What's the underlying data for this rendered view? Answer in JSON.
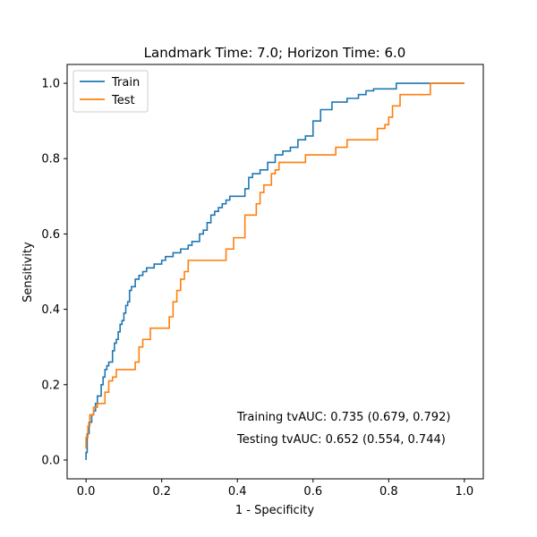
{
  "chart_data": {
    "type": "line",
    "title": "Landmark Time: 7.0; Horizon Time: 6.0",
    "xlabel": "1 - Specificity",
    "ylabel": "Sensitivity",
    "xlim": [
      -0.05,
      1.05
    ],
    "ylim": [
      -0.05,
      1.05
    ],
    "xticks": [
      0.0,
      0.2,
      0.4,
      0.6,
      0.8,
      1.0
    ],
    "yticks": [
      0.0,
      0.2,
      0.4,
      0.6,
      0.8,
      1.0
    ],
    "xtick_labels": [
      "0.0",
      "0.2",
      "0.4",
      "0.6",
      "0.8",
      "1.0"
    ],
    "ytick_labels": [
      "0.0",
      "0.2",
      "0.4",
      "0.6",
      "0.8",
      "1.0"
    ],
    "grid": false,
    "legend_position": "top-left",
    "series": [
      {
        "name": "Train",
        "color": "#1f77b4",
        "x": [
          0.0,
          0.0,
          0.003,
          0.003,
          0.008,
          0.008,
          0.015,
          0.015,
          0.02,
          0.02,
          0.025,
          0.025,
          0.03,
          0.03,
          0.04,
          0.04,
          0.045,
          0.045,
          0.05,
          0.05,
          0.055,
          0.055,
          0.06,
          0.06,
          0.07,
          0.07,
          0.075,
          0.075,
          0.08,
          0.08,
          0.085,
          0.085,
          0.09,
          0.09,
          0.095,
          0.095,
          0.1,
          0.1,
          0.105,
          0.105,
          0.11,
          0.11,
          0.115,
          0.115,
          0.12,
          0.12,
          0.13,
          0.13,
          0.14,
          0.14,
          0.15,
          0.15,
          0.16,
          0.16,
          0.18,
          0.18,
          0.2,
          0.2,
          0.21,
          0.21,
          0.23,
          0.23,
          0.25,
          0.25,
          0.27,
          0.27,
          0.28,
          0.28,
          0.3,
          0.3,
          0.31,
          0.31,
          0.32,
          0.32,
          0.33,
          0.33,
          0.34,
          0.34,
          0.35,
          0.35,
          0.36,
          0.36,
          0.37,
          0.37,
          0.38,
          0.38,
          0.42,
          0.42,
          0.43,
          0.43,
          0.44,
          0.44,
          0.46,
          0.46,
          0.48,
          0.48,
          0.5,
          0.5,
          0.52,
          0.52,
          0.54,
          0.54,
          0.56,
          0.56,
          0.58,
          0.58,
          0.6,
          0.6,
          0.62,
          0.62,
          0.65,
          0.65,
          0.69,
          0.69,
          0.72,
          0.72,
          0.74,
          0.74,
          0.76,
          0.76,
          0.82,
          0.82,
          0.91,
          0.91,
          1.0
        ],
        "y": [
          0.0,
          0.02,
          0.02,
          0.07,
          0.07,
          0.1,
          0.1,
          0.12,
          0.12,
          0.13,
          0.13,
          0.15,
          0.15,
          0.17,
          0.17,
          0.2,
          0.2,
          0.22,
          0.22,
          0.24,
          0.24,
          0.25,
          0.25,
          0.26,
          0.26,
          0.29,
          0.29,
          0.31,
          0.31,
          0.32,
          0.32,
          0.34,
          0.34,
          0.36,
          0.36,
          0.37,
          0.37,
          0.39,
          0.39,
          0.41,
          0.41,
          0.42,
          0.42,
          0.45,
          0.45,
          0.46,
          0.46,
          0.48,
          0.48,
          0.49,
          0.49,
          0.5,
          0.5,
          0.51,
          0.51,
          0.52,
          0.52,
          0.53,
          0.53,
          0.54,
          0.54,
          0.55,
          0.55,
          0.56,
          0.56,
          0.57,
          0.57,
          0.58,
          0.58,
          0.6,
          0.6,
          0.61,
          0.61,
          0.63,
          0.63,
          0.65,
          0.65,
          0.66,
          0.66,
          0.67,
          0.67,
          0.68,
          0.68,
          0.69,
          0.69,
          0.7,
          0.7,
          0.72,
          0.72,
          0.75,
          0.75,
          0.76,
          0.76,
          0.77,
          0.77,
          0.79,
          0.79,
          0.81,
          0.81,
          0.82,
          0.82,
          0.83,
          0.83,
          0.85,
          0.85,
          0.86,
          0.86,
          0.9,
          0.9,
          0.93,
          0.93,
          0.95,
          0.95,
          0.96,
          0.96,
          0.97,
          0.97,
          0.98,
          0.98,
          0.985,
          0.985,
          1.0,
          1.0,
          1.0,
          1.0
        ]
      },
      {
        "name": "Test",
        "color": "#ff7f0e",
        "x": [
          0.0,
          0.0,
          0.005,
          0.005,
          0.01,
          0.01,
          0.02,
          0.02,
          0.03,
          0.03,
          0.05,
          0.05,
          0.06,
          0.06,
          0.07,
          0.07,
          0.08,
          0.08,
          0.13,
          0.13,
          0.14,
          0.14,
          0.15,
          0.15,
          0.17,
          0.17,
          0.22,
          0.22,
          0.23,
          0.23,
          0.24,
          0.24,
          0.25,
          0.25,
          0.26,
          0.26,
          0.27,
          0.27,
          0.37,
          0.37,
          0.39,
          0.39,
          0.42,
          0.42,
          0.45,
          0.45,
          0.46,
          0.46,
          0.47,
          0.47,
          0.49,
          0.49,
          0.5,
          0.5,
          0.51,
          0.51,
          0.57,
          0.57,
          0.58,
          0.58,
          0.66,
          0.66,
          0.69,
          0.69,
          0.77,
          0.77,
          0.79,
          0.79,
          0.8,
          0.8,
          0.81,
          0.81,
          0.83,
          0.83,
          0.84,
          0.84,
          0.91,
          0.91,
          1.0
        ],
        "y": [
          0.03,
          0.06,
          0.06,
          0.09,
          0.09,
          0.12,
          0.12,
          0.14,
          0.14,
          0.15,
          0.15,
          0.18,
          0.18,
          0.21,
          0.21,
          0.22,
          0.22,
          0.24,
          0.24,
          0.26,
          0.26,
          0.3,
          0.3,
          0.32,
          0.32,
          0.35,
          0.35,
          0.38,
          0.38,
          0.42,
          0.42,
          0.45,
          0.45,
          0.48,
          0.48,
          0.5,
          0.5,
          0.53,
          0.53,
          0.56,
          0.56,
          0.59,
          0.59,
          0.65,
          0.65,
          0.68,
          0.68,
          0.71,
          0.71,
          0.73,
          0.73,
          0.76,
          0.76,
          0.77,
          0.77,
          0.79,
          0.79,
          0.79,
          0.79,
          0.81,
          0.81,
          0.83,
          0.83,
          0.85,
          0.85,
          0.88,
          0.88,
          0.89,
          0.89,
          0.91,
          0.91,
          0.94,
          0.94,
          0.97,
          0.97,
          0.97,
          0.97,
          1.0,
          1.0
        ]
      }
    ],
    "annotations": [
      "Training tvAUC: 0.735 (0.679, 0.792)",
      "Testing tvAUC: 0.652 (0.554, 0.744)"
    ]
  }
}
